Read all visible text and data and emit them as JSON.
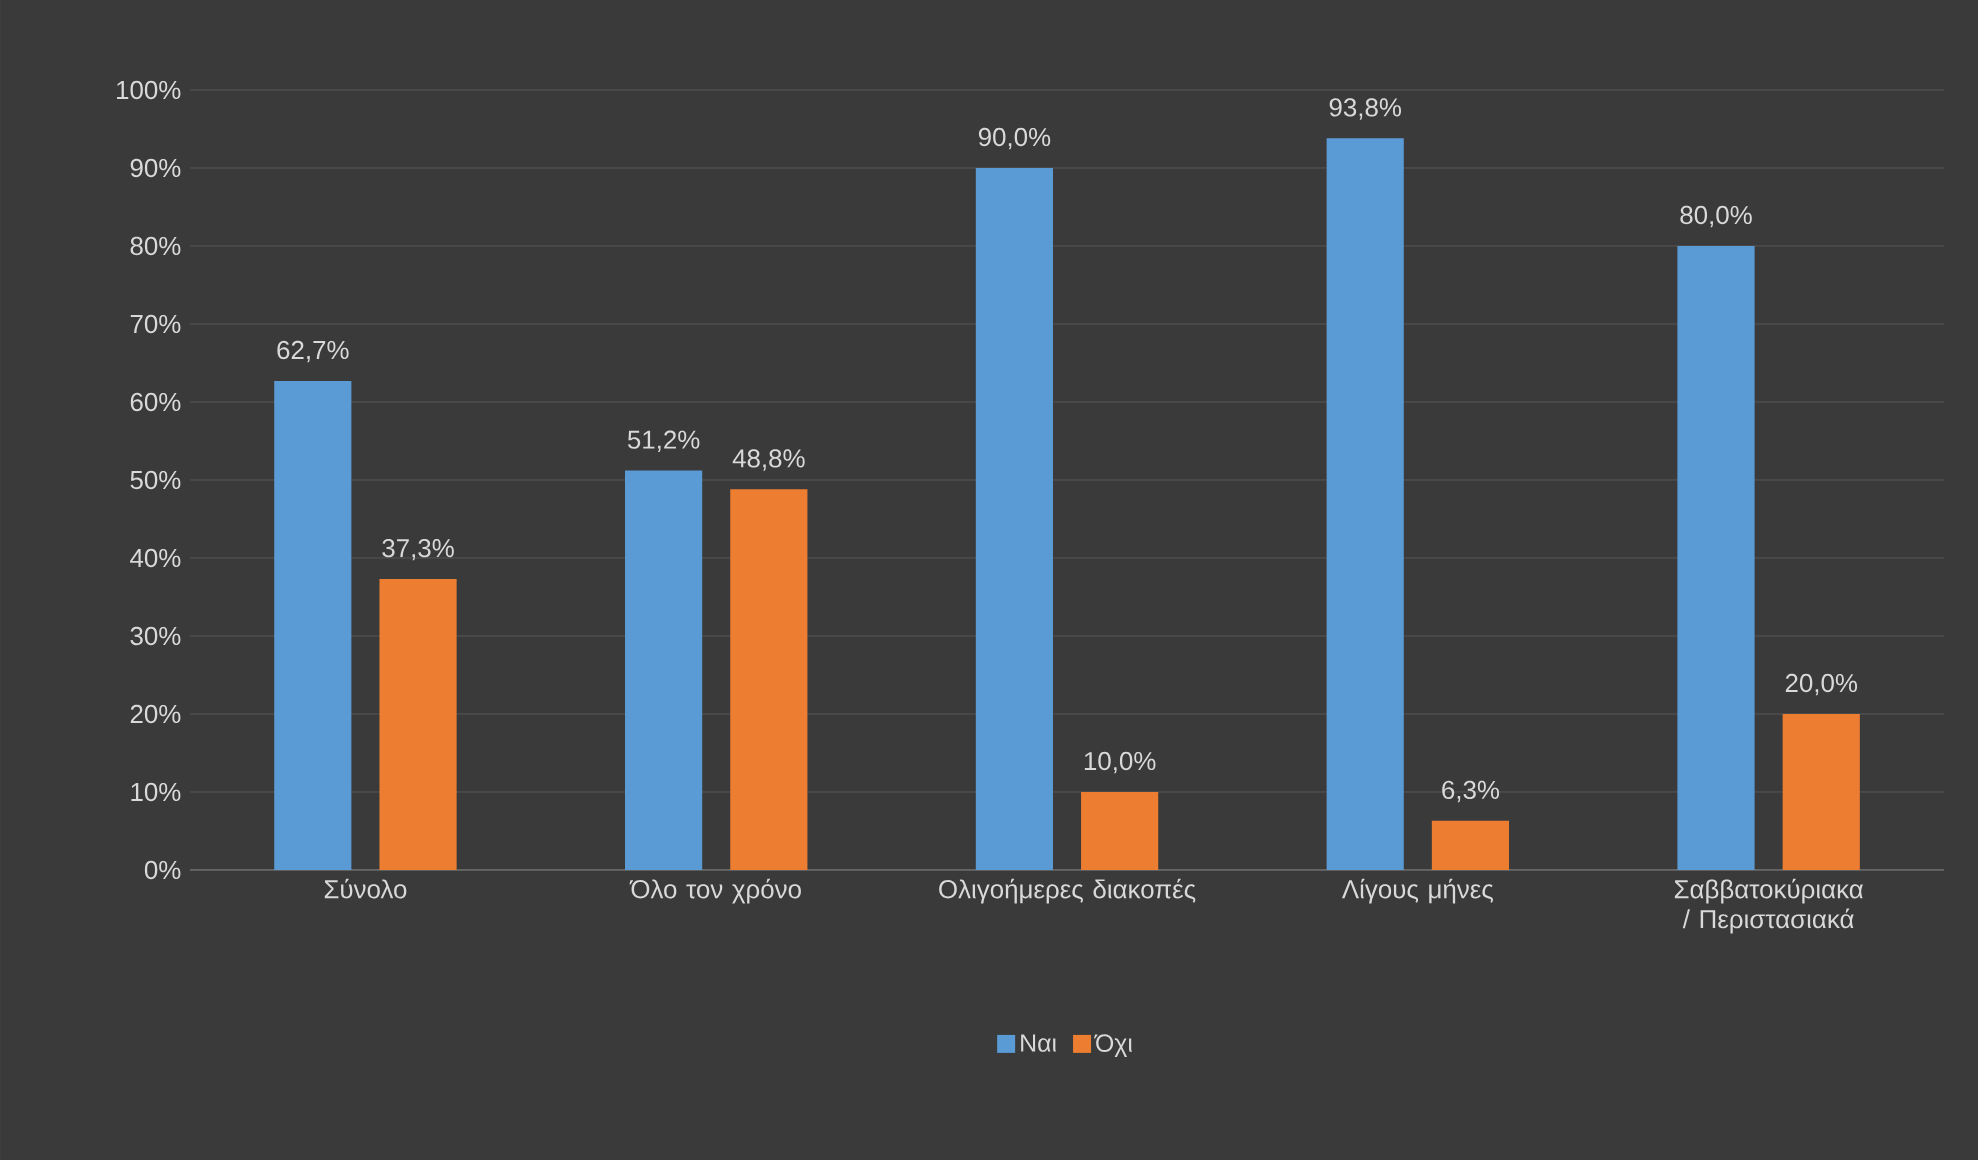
{
  "chart_data": {
    "type": "bar",
    "categories": [
      "Σύνολο",
      "Όλο τον χρόνο",
      "Ολιγοήμερες διακοπές",
      "Λίγους μήνες",
      "Σαββατοκύριακα / Περιστασιακά"
    ],
    "series": [
      {
        "name": "Ναι",
        "color": "#5b9bd5",
        "values": [
          62.7,
          51.2,
          90.0,
          93.8,
          80.0
        ],
        "value_labels": [
          "62,7%",
          "51,2%",
          "90,0%",
          "93,8%",
          "80,0%"
        ]
      },
      {
        "name": "Όχι",
        "color": "#ed7d31",
        "values": [
          37.3,
          48.8,
          10.0,
          6.3,
          20.0
        ],
        "value_labels": [
          "37,3%",
          "48,8%",
          "10,0%",
          "6,3%",
          "20,0%"
        ]
      }
    ],
    "ylim": [
      0,
      100
    ],
    "yticks": [
      {
        "value": 0,
        "label": "0%"
      },
      {
        "value": 10,
        "label": "10%"
      },
      {
        "value": 20,
        "label": "20%"
      },
      {
        "value": 30,
        "label": "30%"
      },
      {
        "value": 40,
        "label": "40%"
      },
      {
        "value": 50,
        "label": "50%"
      },
      {
        "value": 60,
        "label": "60%"
      },
      {
        "value": 70,
        "label": "70%"
      },
      {
        "value": 80,
        "label": "80%"
      },
      {
        "value": 90,
        "label": "90%"
      },
      {
        "value": 100,
        "label": "100%"
      }
    ],
    "grid": "y",
    "legend": "bottom"
  }
}
